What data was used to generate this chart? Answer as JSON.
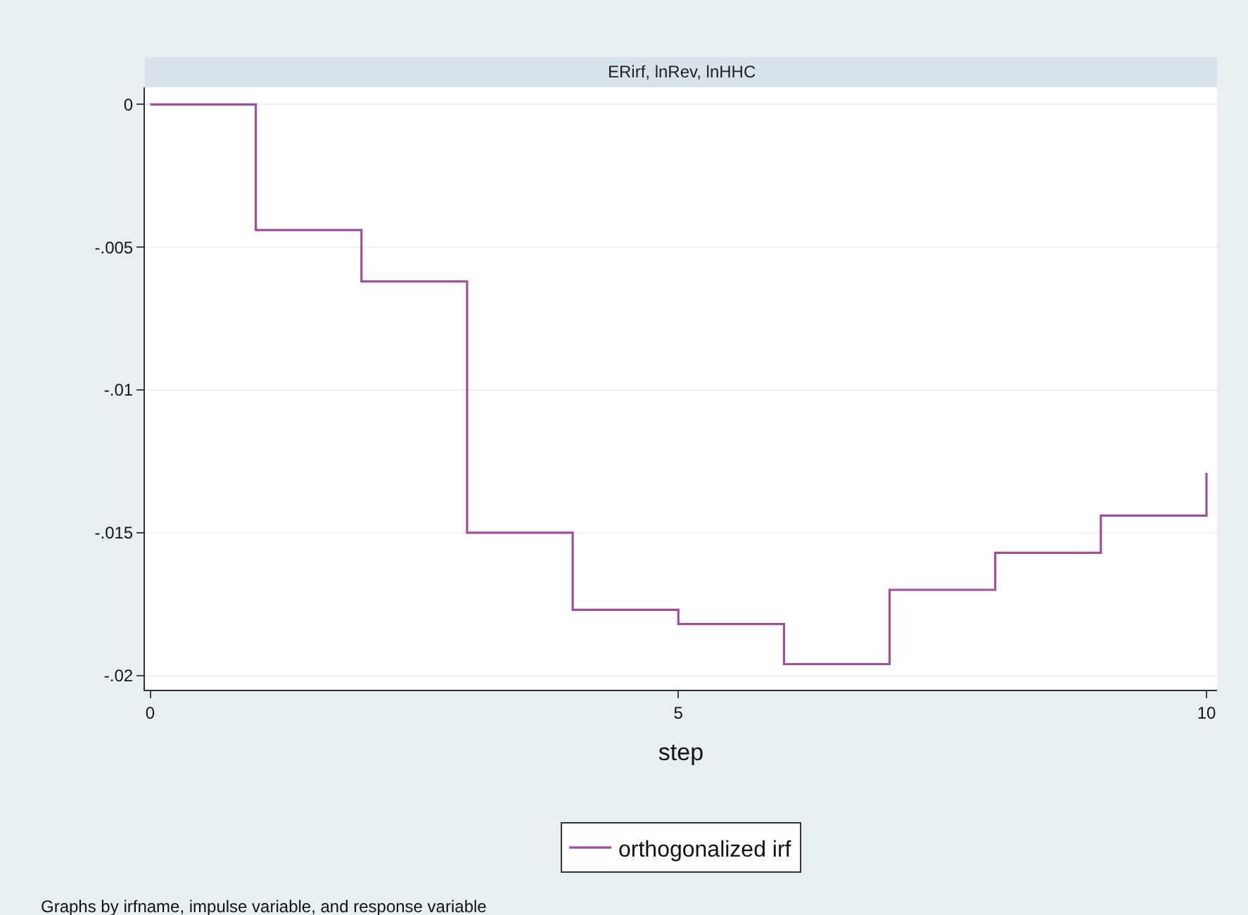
{
  "chart_data": {
    "type": "step",
    "title": "ERirf, lnRev, lnHHC",
    "xlabel": "step",
    "x": [
      0,
      1,
      2,
      3,
      4,
      5,
      6,
      7,
      8,
      9,
      10
    ],
    "series": [
      {
        "name": "orthogonalized irf",
        "color": "#a0509a",
        "values": [
          0,
          -0.0044,
          -0.0062,
          -0.015,
          -0.0177,
          -0.0182,
          -0.0196,
          -0.017,
          -0.0157,
          -0.0144,
          -0.0129
        ]
      }
    ],
    "xlim": [
      -0.05,
      10.1
    ],
    "xticks": [
      0,
      5,
      10
    ],
    "ylim": [
      -0.0205,
      0.0006
    ],
    "yticks": [
      {
        "value": 0,
        "label": "0"
      },
      {
        "value": -0.005,
        "label": "-.005"
      },
      {
        "value": -0.01,
        "label": "-.01"
      },
      {
        "value": -0.015,
        "label": "-.015"
      },
      {
        "value": -0.02,
        "label": "-.02"
      }
    ],
    "grid": "y",
    "legend": "bottom",
    "marker": "none",
    "line_style": "solid",
    "annotations": [
      "Graphs by irfname, impulse variable, and response variable"
    ]
  }
}
